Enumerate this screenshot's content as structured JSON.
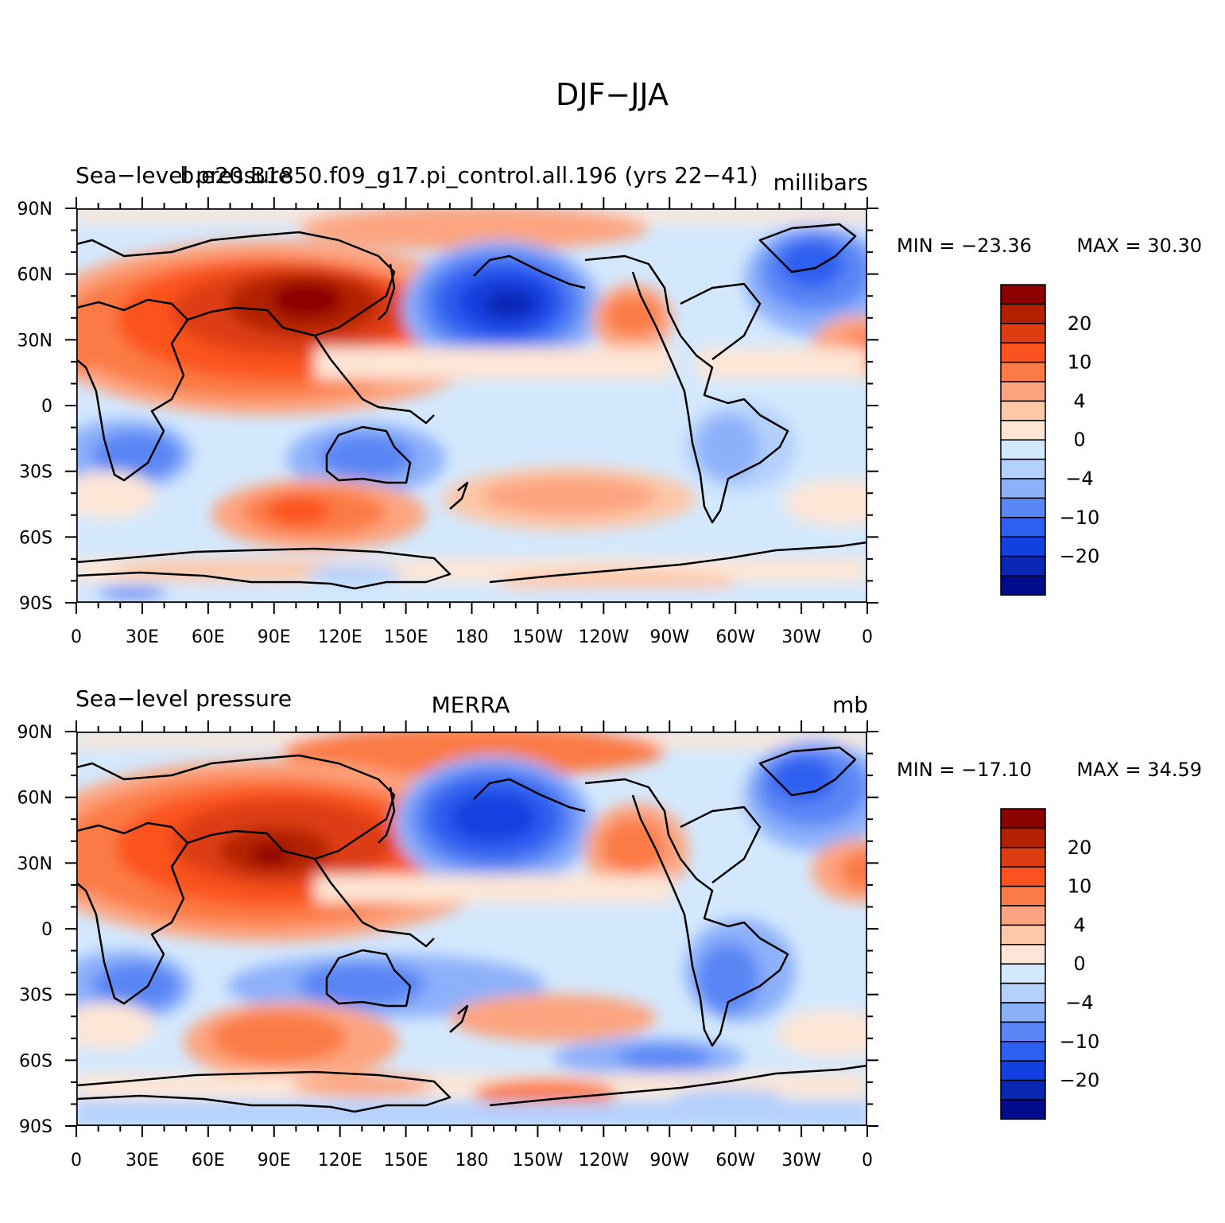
{
  "figure": {
    "title": "DJF−JJA"
  },
  "x_ticks": [
    "0",
    "30E",
    "60E",
    "90E",
    "120E",
    "150E",
    "180",
    "150W",
    "120W",
    "90W",
    "60W",
    "30W",
    "0"
  ],
  "y_ticks": [
    "90N",
    "60N",
    "30N",
    "0",
    "30S",
    "60S",
    "90S"
  ],
  "panels": [
    {
      "left_title": "Sea−level pressure",
      "center_title": "b.e20.B1850.f09_g17.pi_control.all.196 (yrs 22−41)",
      "right_title": "millibars",
      "min_label": "MIN = −23.36",
      "max_label": "MAX =   30.30",
      "min_value": -23.36,
      "max_value": 30.3,
      "colorbar_labels": [
        "20",
        "10",
        "4",
        "0",
        "−4",
        "−10",
        "−20"
      ]
    },
    {
      "left_title": "Sea−level pressure",
      "center_title": "MERRA",
      "right_title": "mb",
      "min_label": "MIN = −17.10",
      "max_label": "MAX =   34.59",
      "min_value": -17.1,
      "max_value": 34.59,
      "colorbar_labels": [
        "20",
        "10",
        "4",
        "0",
        "−4",
        "−10",
        "−20"
      ]
    }
  ],
  "colors": {
    "colorbar": [
      "#8b0000",
      "#b22000",
      "#dd3d12",
      "#fb531f",
      "#fb7a45",
      "#fca47f",
      "#fdc7a8",
      "#fde6d6",
      "#d3e8fd",
      "#b4d0fc",
      "#8db0fa",
      "#5a86f5",
      "#2e5ff0",
      "#1540e0",
      "#0a27b4",
      "#000c8b"
    ],
    "coast": "#000000"
  }
}
